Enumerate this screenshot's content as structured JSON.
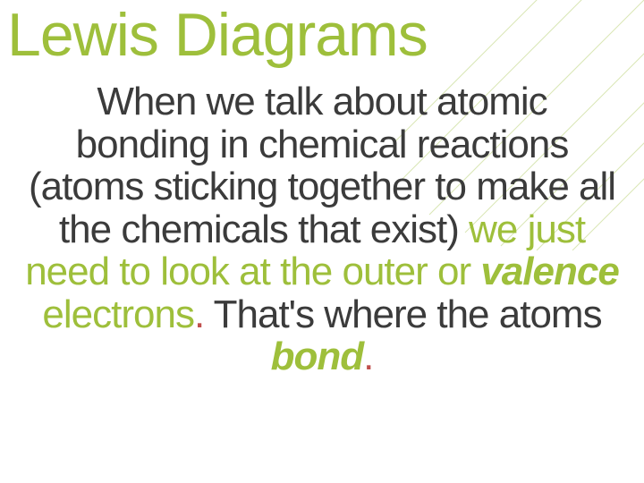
{
  "slide": {
    "title": "Lewis Diagrams",
    "body_segments": [
      {
        "text": "When we talk about atomic bonding in chemical reactions (atoms sticking together to make all the chemicals that exist) ",
        "color": "#3b3b3b",
        "style": "normal"
      },
      {
        "text": "we just need to look at the outer or ",
        "color": "#9ebf3b",
        "style": "normal"
      },
      {
        "text": "valence",
        "color": "#9ebf3b",
        "style": "emph"
      },
      {
        "text": " electrons",
        "color": "#9ebf3b",
        "style": "normal"
      },
      {
        "text": ".",
        "color": "#c0504d",
        "style": "normal"
      },
      {
        "text": " That's where the atoms ",
        "color": "#3b3b3b",
        "style": "normal"
      },
      {
        "text": "bond",
        "color": "#9ebf3b",
        "style": "emph"
      },
      {
        "text": ".",
        "color": "#c0504d",
        "style": "normal"
      }
    ]
  },
  "style": {
    "title_color": "#9ebf3b",
    "title_fontsize": 68,
    "body_fontsize": 44,
    "background": "#ffffff",
    "leaf_fill": "#9ebf3b",
    "line_color": "#d9e6b5"
  }
}
